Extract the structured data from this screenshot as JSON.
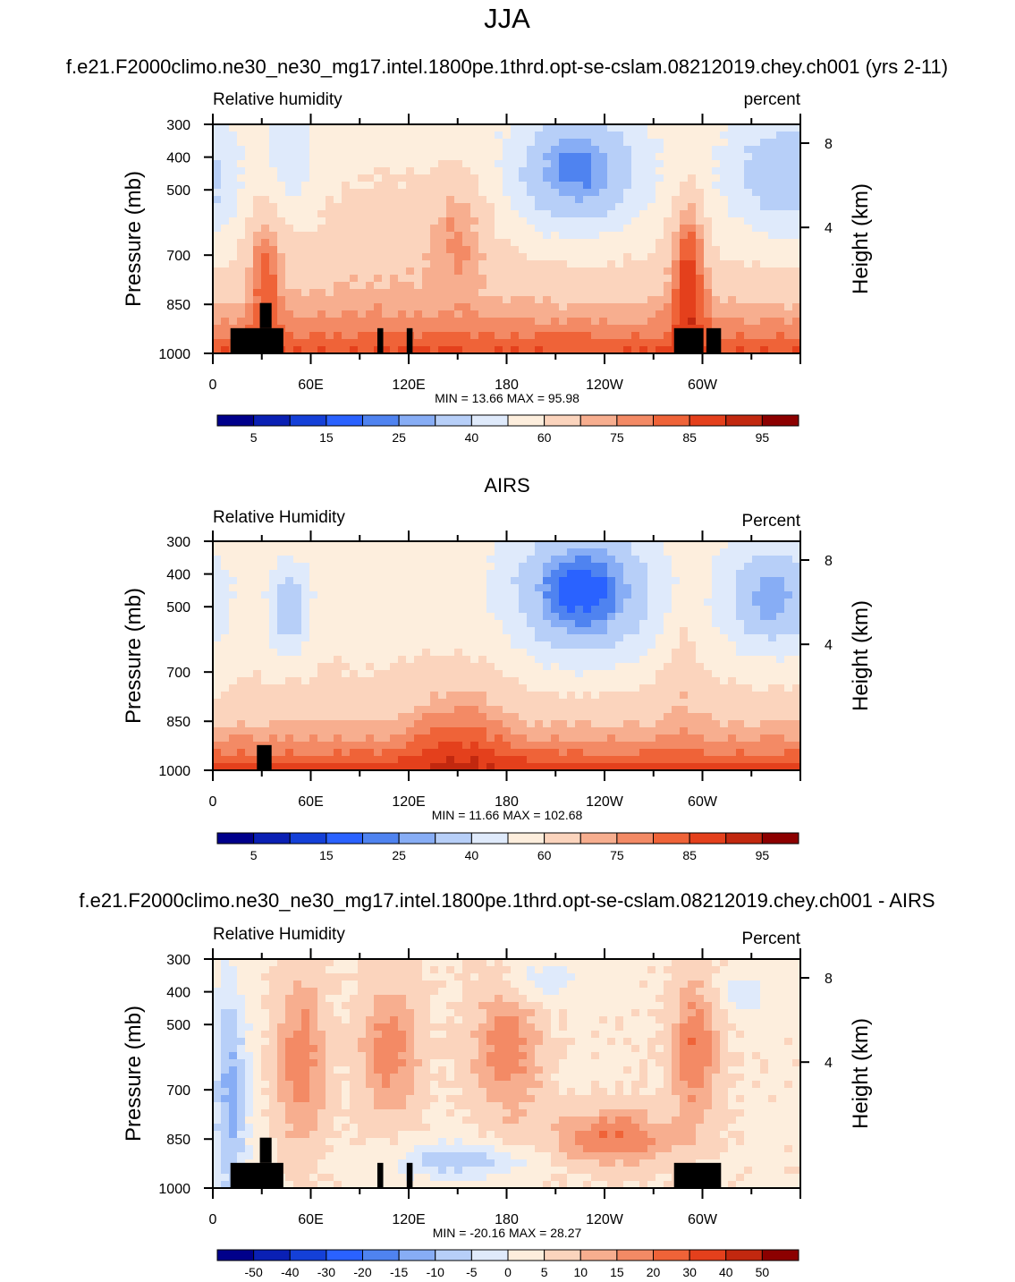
{
  "figure": {
    "title": "JJA"
  },
  "chart_data": [
    {
      "type": "heatmap",
      "title": "f.e21.F2000climo.ne30_ne30_mg17.intel.1800pe.1thrd.opt-se-cslam.08212019.chey.ch001 (yrs 2-11)",
      "left_label": "Relative humidity",
      "right_label": "percent",
      "ylabel": "Pressure (mb)",
      "y2label": "Height (km)",
      "x_ticks": [
        "0",
        "60E",
        "120E",
        "180",
        "120W",
        "60W"
      ],
      "y_ticks": [
        "300",
        "400",
        "500",
        "700",
        "850",
        "1000"
      ],
      "y2_ticks": [
        "8",
        "4"
      ],
      "stats_text": "MIN =  13.66  MAX =  95.98",
      "min": 13.66,
      "max": 95.98,
      "colorbar_labels": [
        "5",
        "15",
        "25",
        "40",
        "60",
        "75",
        "85",
        "95"
      ],
      "colors": [
        "#00008b",
        "#0a20b4",
        "#1440d8",
        "#2a62ff",
        "#4f83f0",
        "#87adf5",
        "#b7cff8",
        "#dfeafb",
        "#fdeedd",
        "#fbd4bd",
        "#f7ae8f",
        "#f38a65",
        "#ef6338",
        "#e4401c",
        "#c2280f",
        "#8c0000"
      ]
    },
    {
      "type": "heatmap",
      "title": "AIRS",
      "left_label": "Relative Humidity",
      "right_label": "Percent",
      "ylabel": "Pressure (mb)",
      "y2label": "Height (km)",
      "x_ticks": [
        "0",
        "60E",
        "120E",
        "180",
        "120W",
        "60W"
      ],
      "y_ticks": [
        "300",
        "400",
        "500",
        "700",
        "850",
        "1000"
      ],
      "y2_ticks": [
        "8",
        "4"
      ],
      "stats_text": "MIN =  11.66  MAX = 102.68",
      "min": 11.66,
      "max": 102.68,
      "colorbar_labels": [
        "5",
        "15",
        "25",
        "40",
        "60",
        "75",
        "85",
        "95"
      ],
      "colors": [
        "#00008b",
        "#0a20b4",
        "#1440d8",
        "#2a62ff",
        "#4f83f0",
        "#87adf5",
        "#b7cff8",
        "#dfeafb",
        "#fdeedd",
        "#fbd4bd",
        "#f7ae8f",
        "#f38a65",
        "#ef6338",
        "#e4401c",
        "#c2280f",
        "#8c0000"
      ]
    },
    {
      "type": "heatmap",
      "title": "f.e21.F2000climo.ne30_ne30_mg17.intel.1800pe.1thrd.opt-se-cslam.08212019.chey.ch001 - AIRS",
      "left_label": "Relative Humidity",
      "right_label": "Percent",
      "ylabel": "Pressure (mb)",
      "y2label": "Height (km)",
      "x_ticks": [
        "0",
        "60E",
        "120E",
        "180",
        "120W",
        "60W"
      ],
      "y_ticks": [
        "300",
        "400",
        "500",
        "700",
        "850",
        "1000"
      ],
      "y2_ticks": [
        "8",
        "4"
      ],
      "stats_text": "MIN = -20.16  MAX =  28.27",
      "min": -20.16,
      "max": 28.27,
      "colorbar_labels": [
        "-50",
        "-40",
        "-30",
        "-20",
        "-15",
        "-10",
        "-5",
        "0",
        "5",
        "10",
        "15",
        "20",
        "30",
        "40",
        "50"
      ],
      "colors": [
        "#00008b",
        "#0a20b4",
        "#1440d8",
        "#2a62ff",
        "#4f83f0",
        "#87adf5",
        "#b7cff8",
        "#dfeafb",
        "#fdeedd",
        "#fbd4bd",
        "#f7ae8f",
        "#f38a65",
        "#ef6338",
        "#e4401c",
        "#c2280f",
        "#8c0000"
      ]
    }
  ]
}
